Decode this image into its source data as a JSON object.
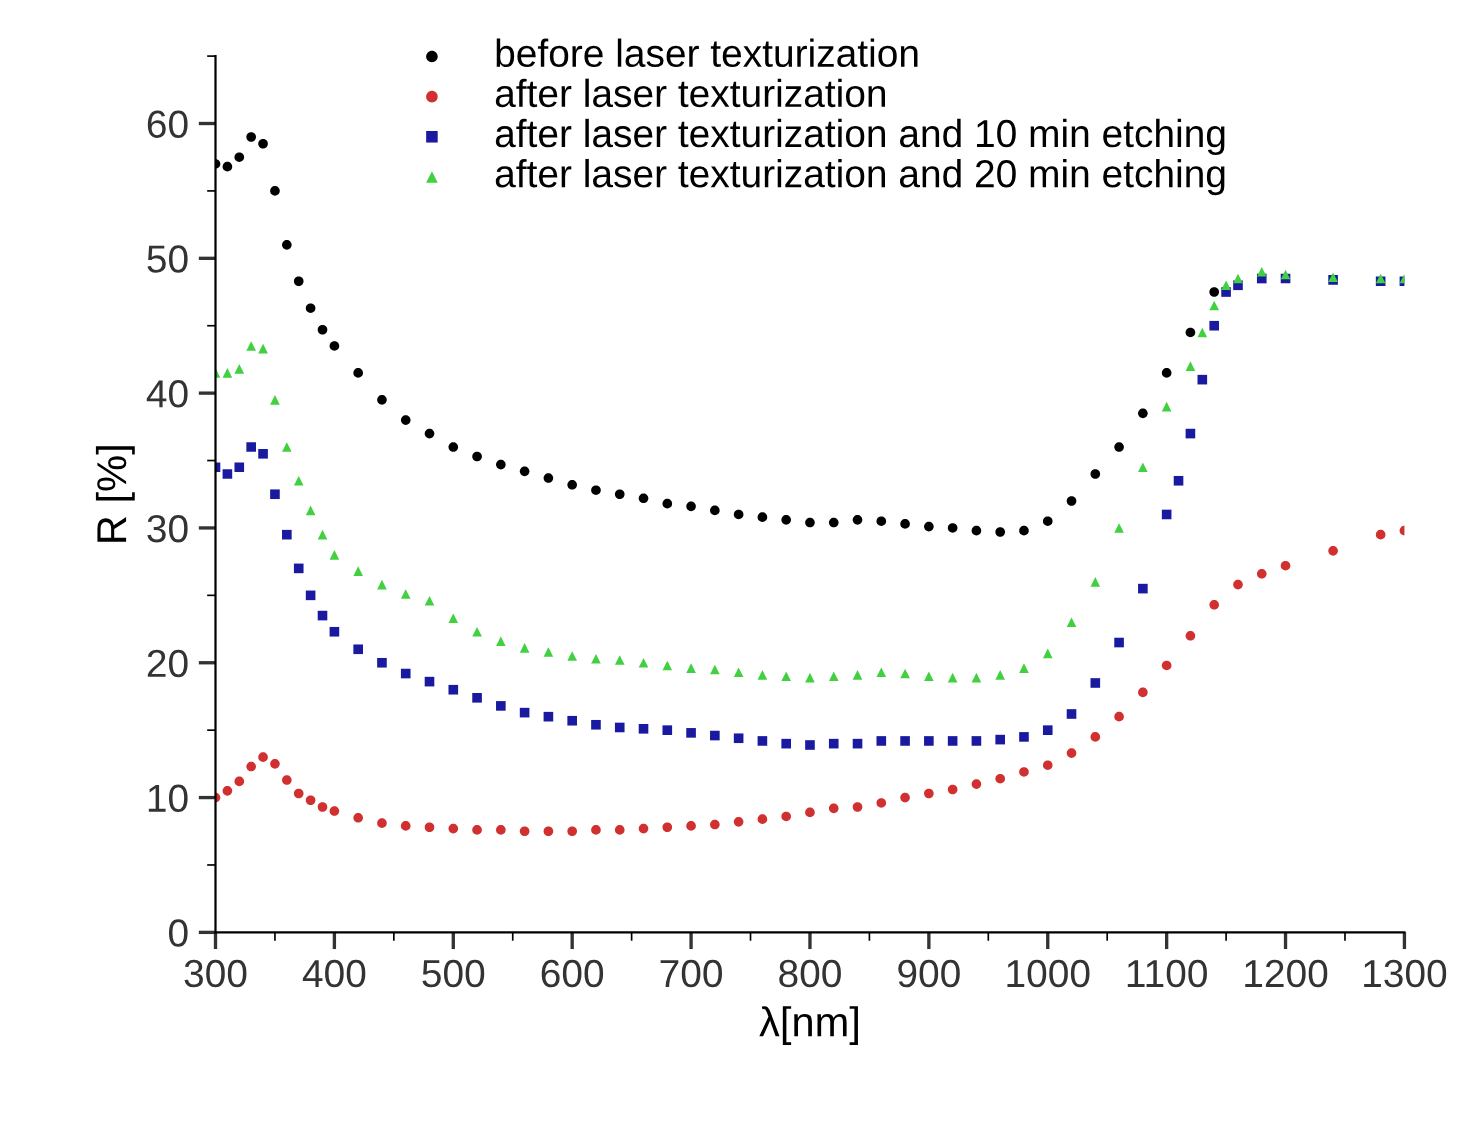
{
  "chart_data": {
    "type": "scatter",
    "xlabel": "λ[nm]",
    "ylabel": "R [%]",
    "xlim": [
      300,
      1300
    ],
    "ylim": [
      0,
      65
    ],
    "xticks": [
      300,
      400,
      500,
      600,
      700,
      800,
      900,
      1000,
      1100,
      1200,
      1300
    ],
    "yticks": [
      0,
      10,
      20,
      30,
      40,
      50,
      60
    ],
    "grid": false,
    "legend": "top",
    "x": [
      300,
      310,
      320,
      330,
      340,
      350,
      360,
      370,
      380,
      390,
      400,
      420,
      440,
      460,
      480,
      500,
      520,
      540,
      560,
      580,
      600,
      620,
      640,
      660,
      680,
      700,
      720,
      740,
      760,
      780,
      800,
      820,
      840,
      860,
      880,
      900,
      920,
      940,
      960,
      980,
      1000,
      1020,
      1040,
      1060,
      1080,
      1100,
      1120,
      1140,
      1160,
      1180,
      1200,
      1240,
      1280,
      1300
    ],
    "series": [
      {
        "name": "before laser texturization",
        "color": "#000000",
        "marker": "circle",
        "values": [
          57,
          56.8,
          57.5,
          59,
          58.5,
          55,
          51,
          48.3,
          46.3,
          44.7,
          43.5,
          41.5,
          39.5,
          38,
          37,
          36,
          35.3,
          34.7,
          34.2,
          33.7,
          33.2,
          32.8,
          32.5,
          32.2,
          31.8,
          31.6,
          31.3,
          31,
          30.8,
          30.6,
          30.4,
          30.4,
          30.6,
          30.5,
          30.3,
          30.1,
          30,
          29.8,
          29.7,
          29.8,
          30.5,
          32,
          34,
          36,
          38.5,
          41.5,
          44.5,
          47.5,
          null,
          null,
          null,
          null,
          null,
          null
        ]
      },
      {
        "name": "after laser texturization",
        "color": "#d03030",
        "marker": "circle",
        "values": [
          10,
          10.5,
          11.2,
          12.3,
          13,
          12.5,
          11.3,
          10.3,
          9.8,
          9.3,
          9,
          8.5,
          8.1,
          7.9,
          7.8,
          7.7,
          7.6,
          7.6,
          7.5,
          7.5,
          7.5,
          7.6,
          7.6,
          7.7,
          7.8,
          7.9,
          8,
          8.2,
          8.4,
          8.6,
          8.9,
          9.2,
          9.3,
          9.6,
          10,
          10.3,
          10.6,
          11,
          11.4,
          11.9,
          12.4,
          13.3,
          14.5,
          16,
          17.8,
          19.8,
          22,
          24.3,
          25.8,
          26.6,
          27.2,
          28.3,
          29.5,
          29.8
        ]
      },
      {
        "name": "after laser texturization and 10 min etching",
        "color": "#1a1aa0",
        "marker": "square",
        "x": [
          300,
          310,
          320,
          330,
          340,
          350,
          360,
          370,
          380,
          390,
          400,
          420,
          440,
          460,
          480,
          500,
          520,
          540,
          560,
          580,
          600,
          620,
          640,
          660,
          680,
          700,
          720,
          740,
          760,
          780,
          800,
          820,
          840,
          860,
          880,
          900,
          920,
          940,
          960,
          980,
          1000,
          1020,
          1040,
          1060,
          1080,
          1100,
          1110,
          1120,
          1130,
          1140,
          1150,
          1160,
          1180,
          1200,
          1240,
          1280,
          1300
        ],
        "values": [
          34.5,
          34,
          34.5,
          36,
          35.5,
          32.5,
          29.5,
          27,
          25,
          23.5,
          22.3,
          21,
          20,
          19.2,
          18.6,
          18,
          17.4,
          16.8,
          16.3,
          16,
          15.7,
          15.4,
          15.2,
          15.1,
          15,
          14.8,
          14.6,
          14.4,
          14.2,
          14,
          13.9,
          14,
          14,
          14.2,
          14.2,
          14.2,
          14.2,
          14.2,
          14.3,
          14.5,
          15,
          16.2,
          18.5,
          21.5,
          25.5,
          31,
          33.5,
          37,
          41,
          45,
          47.5,
          48,
          48.5,
          48.5,
          48.4,
          48.3,
          48.3
        ]
      },
      {
        "name": "after laser texturization and 20 min etching",
        "color": "#40d040",
        "marker": "triangle",
        "x": [
          300,
          310,
          320,
          330,
          340,
          350,
          360,
          370,
          380,
          390,
          400,
          420,
          440,
          460,
          480,
          500,
          520,
          540,
          560,
          580,
          600,
          620,
          640,
          660,
          680,
          700,
          720,
          740,
          760,
          780,
          800,
          820,
          840,
          860,
          880,
          900,
          920,
          940,
          960,
          980,
          1000,
          1020,
          1040,
          1060,
          1080,
          1100,
          1120,
          1130,
          1140,
          1150,
          1160,
          1180,
          1200,
          1240,
          1280,
          1300
        ],
        "values": [
          41.5,
          41.5,
          41.8,
          43.5,
          43.3,
          39.5,
          36,
          33.5,
          31.3,
          29.5,
          28,
          26.8,
          25.8,
          25.1,
          24.6,
          23.3,
          22.3,
          21.6,
          21.1,
          20.8,
          20.5,
          20.3,
          20.2,
          20,
          19.8,
          19.6,
          19.5,
          19.3,
          19.1,
          19,
          18.9,
          19,
          19.1,
          19.3,
          19.2,
          19,
          18.9,
          18.9,
          19.1,
          19.6,
          20.7,
          23,
          26,
          30,
          34.5,
          39,
          42,
          44.5,
          46.5,
          48,
          48.5,
          49,
          48.8,
          48.6,
          48.5,
          48.5
        ]
      }
    ]
  }
}
